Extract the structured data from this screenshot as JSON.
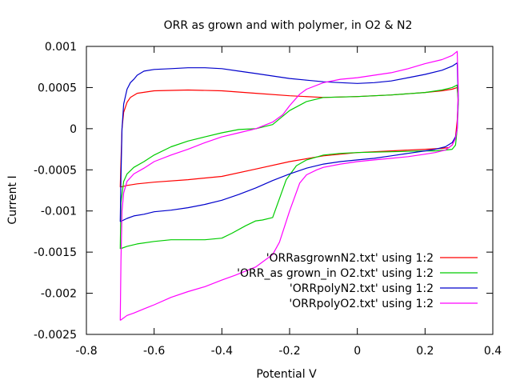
{
  "chart_data": {
    "type": "line",
    "title": "ORR as grown and with polymer, in O2 & N2",
    "xlabel": "Potential V",
    "ylabel": "Current I",
    "xlim": [
      -0.8,
      0.4
    ],
    "ylim": [
      -0.0025,
      0.001
    ],
    "xticks": [
      -0.8,
      -0.6,
      -0.4,
      -0.2,
      0,
      0.2,
      0.4
    ],
    "xtick_labels": [
      "-0.8",
      "-0.6",
      "-0.4",
      "-0.2",
      "0",
      "0.2",
      "0.4"
    ],
    "yticks": [
      -0.0025,
      -0.002,
      -0.0015,
      -0.001,
      -0.0005,
      0,
      0.0005,
      0.001
    ],
    "ytick_labels": [
      "-0.0025",
      "-0.002",
      "-0.0015",
      "-0.001",
      "-0.0005",
      "0",
      "0.0005",
      "0.001"
    ],
    "grid": false,
    "legend_position": "bottom-right",
    "series": [
      {
        "name": "'ORRasgrownN2.txt' using 1:2",
        "color": "#ff0000",
        "x": [
          -0.7,
          -0.698,
          -0.695,
          -0.69,
          -0.68,
          -0.67,
          -0.65,
          -0.6,
          -0.5,
          -0.4,
          -0.3,
          -0.2,
          -0.1,
          0.0,
          0.1,
          0.2,
          0.25,
          0.28,
          0.295,
          0.298,
          0.295,
          0.29,
          0.28,
          0.27,
          0.25,
          0.2,
          0.1,
          0.0,
          -0.1,
          -0.2,
          -0.3,
          -0.4,
          -0.5,
          -0.6,
          -0.65,
          -0.68,
          -0.7
        ],
        "y": [
          -0.00071,
          -0.0004,
          0.0,
          0.0002,
          0.00032,
          0.00038,
          0.00043,
          0.00046,
          0.00047,
          0.00046,
          0.00043,
          0.0004,
          0.00038,
          0.00039,
          0.00041,
          0.00044,
          0.00046,
          0.00048,
          0.0005,
          0.00035,
          0.0001,
          -0.0001,
          -0.0002,
          -0.00023,
          -0.00024,
          -0.00025,
          -0.00027,
          -0.00029,
          -0.00033,
          -0.0004,
          -0.00049,
          -0.00058,
          -0.00062,
          -0.00065,
          -0.00067,
          -0.00069,
          -0.00071
        ]
      },
      {
        "name": "'ORR_as grown_in O2.txt' using 1:2",
        "color": "#00cc00",
        "x": [
          -0.7,
          -0.698,
          -0.69,
          -0.68,
          -0.66,
          -0.63,
          -0.6,
          -0.55,
          -0.5,
          -0.45,
          -0.4,
          -0.35,
          -0.3,
          -0.25,
          -0.2,
          -0.15,
          -0.1,
          0.0,
          0.1,
          0.2,
          0.25,
          0.28,
          0.295,
          0.298,
          0.295,
          0.29,
          0.28,
          0.26,
          0.23,
          0.2,
          0.1,
          0.0,
          -0.05,
          -0.1,
          -0.15,
          -0.18,
          -0.21,
          -0.23,
          -0.25,
          -0.28,
          -0.3,
          -0.33,
          -0.37,
          -0.4,
          -0.45,
          -0.5,
          -0.55,
          -0.6,
          -0.65,
          -0.68,
          -0.7
        ],
        "y": [
          -0.00146,
          -0.0009,
          -0.00064,
          -0.00055,
          -0.00047,
          -0.0004,
          -0.00032,
          -0.00022,
          -0.00015,
          -0.0001,
          -5e-05,
          -1e-05,
          0.0,
          5e-05,
          0.00022,
          0.00033,
          0.00038,
          0.00039,
          0.00041,
          0.00044,
          0.00047,
          0.0005,
          0.00053,
          0.0003,
          0.0,
          -0.0002,
          -0.00025,
          -0.00026,
          -0.00027,
          -0.00027,
          -0.00028,
          -0.00029,
          -0.0003,
          -0.00032,
          -0.00038,
          -0.00045,
          -0.00062,
          -0.00085,
          -0.00108,
          -0.00111,
          -0.00112,
          -0.00118,
          -0.00127,
          -0.00133,
          -0.00135,
          -0.00135,
          -0.00135,
          -0.00137,
          -0.0014,
          -0.00143,
          -0.00146
        ]
      },
      {
        "name": "'ORRpolyN2.txt' using 1:2",
        "color": "#0000cc",
        "x": [
          -0.7,
          -0.698,
          -0.695,
          -0.69,
          -0.68,
          -0.67,
          -0.66,
          -0.65,
          -0.63,
          -0.6,
          -0.55,
          -0.5,
          -0.45,
          -0.4,
          -0.35,
          -0.3,
          -0.25,
          -0.2,
          -0.15,
          -0.1,
          -0.05,
          0.0,
          0.05,
          0.1,
          0.15,
          0.2,
          0.25,
          0.28,
          0.295,
          0.298,
          0.295,
          0.29,
          0.28,
          0.26,
          0.23,
          0.2,
          0.15,
          0.1,
          0.05,
          0.0,
          -0.05,
          -0.1,
          -0.15,
          -0.2,
          -0.25,
          -0.3,
          -0.35,
          -0.4,
          -0.45,
          -0.5,
          -0.55,
          -0.6,
          -0.63,
          -0.66,
          -0.68,
          -0.7
        ],
        "y": [
          -0.00113,
          -0.0006,
          0.0,
          0.0003,
          0.00048,
          0.00056,
          0.0006,
          0.00065,
          0.0007,
          0.00072,
          0.00073,
          0.00074,
          0.00074,
          0.00073,
          0.0007,
          0.00067,
          0.00064,
          0.00061,
          0.00059,
          0.00057,
          0.00056,
          0.00055,
          0.00056,
          0.00058,
          0.00062,
          0.00066,
          0.00071,
          0.00076,
          0.0008,
          0.0004,
          0.0,
          -0.0001,
          -0.00017,
          -0.00022,
          -0.00025,
          -0.00027,
          -0.0003,
          -0.00033,
          -0.00036,
          -0.00038,
          -0.0004,
          -0.00043,
          -0.00048,
          -0.00055,
          -0.00063,
          -0.00072,
          -0.0008,
          -0.00087,
          -0.00092,
          -0.00096,
          -0.00099,
          -0.00101,
          -0.00104,
          -0.00106,
          -0.00109,
          -0.00113
        ]
      },
      {
        "name": "'ORRpolyO2.txt' using 1:2",
        "color": "#ff00ff",
        "x": [
          -0.7,
          -0.698,
          -0.695,
          -0.69,
          -0.68,
          -0.66,
          -0.63,
          -0.6,
          -0.55,
          -0.5,
          -0.45,
          -0.4,
          -0.35,
          -0.3,
          -0.25,
          -0.22,
          -0.2,
          -0.17,
          -0.15,
          -0.1,
          -0.05,
          0.0,
          0.05,
          0.1,
          0.15,
          0.2,
          0.25,
          0.28,
          0.295,
          0.298,
          0.295,
          0.29,
          0.28,
          0.26,
          0.23,
          0.2,
          0.15,
          0.1,
          0.05,
          0.0,
          -0.05,
          -0.1,
          -0.12,
          -0.15,
          -0.17,
          -0.2,
          -0.23,
          -0.25,
          -0.28,
          -0.3,
          -0.33,
          -0.36,
          -0.4,
          -0.45,
          -0.5,
          -0.55,
          -0.6,
          -0.63,
          -0.66,
          -0.68,
          -0.7
        ],
        "y": [
          -0.00233,
          -0.0016,
          -0.001,
          -0.00078,
          -0.00064,
          -0.00055,
          -0.00048,
          -0.0004,
          -0.00032,
          -0.00025,
          -0.00017,
          -0.0001,
          -5e-05,
          0.0,
          8e-05,
          0.00017,
          0.00028,
          0.00042,
          0.00048,
          0.00056,
          0.0006,
          0.00062,
          0.00065,
          0.00068,
          0.00073,
          0.00079,
          0.00084,
          0.00089,
          0.00094,
          0.0005,
          0.0,
          -0.00012,
          -0.0002,
          -0.00026,
          -0.00029,
          -0.00031,
          -0.00034,
          -0.00036,
          -0.00038,
          -0.0004,
          -0.00043,
          -0.00047,
          -0.0005,
          -0.00056,
          -0.00066,
          -0.001,
          -0.00138,
          -0.00153,
          -0.00162,
          -0.00168,
          -0.00173,
          -0.00178,
          -0.00184,
          -0.00192,
          -0.00198,
          -0.00205,
          -0.00214,
          -0.00219,
          -0.00224,
          -0.00227,
          -0.00233
        ]
      }
    ]
  }
}
